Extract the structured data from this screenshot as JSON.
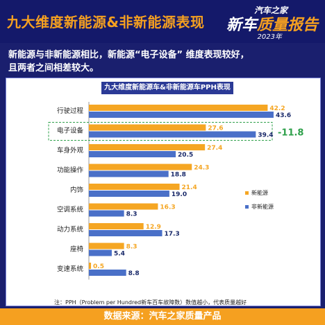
{
  "header": {
    "title": "九大维度新能源&非新能源表现",
    "logo_top": "汽车之家",
    "logo_main_a": "新车",
    "logo_main_b": "质量报告",
    "logo_year": "2023年"
  },
  "description": {
    "line1": "新能源与非新能源相比，新能源“电子设备” 维度表现较好，",
    "line2": "且两者之间相差较大。"
  },
  "note": "注：PPH（Problem per Hundred新车百车故障数）数值越小，代表质量越好",
  "footer": "数据来源：汽车之家质量产品",
  "colors": {
    "nev": "#f5a623",
    "ice": "#4a70c8",
    "accent": "#f5a020",
    "diff": "#2ea04a"
  },
  "chart_data": {
    "type": "bar",
    "orientation": "horizontal",
    "title": "九大维度新能源车&非新能源车PPH表现",
    "categories": [
      "行驶过程",
      "电子设备",
      "车身外观",
      "功能操作",
      "内饰",
      "空调系统",
      "动力系统",
      "座椅",
      "变速系统"
    ],
    "series": [
      {
        "name": "新能源",
        "values": [
          42.2,
          27.6,
          27.4,
          24.3,
          21.4,
          16.3,
          12.9,
          8.3,
          0.5
        ]
      },
      {
        "name": "非新能源",
        "values": [
          43.6,
          39.4,
          20.5,
          18.8,
          19.0,
          8.3,
          17.3,
          5.4,
          8.8
        ]
      }
    ],
    "highlight": {
      "category": "电子设备",
      "label": "-11.8"
    },
    "legend_position": "right",
    "grid": false
  }
}
